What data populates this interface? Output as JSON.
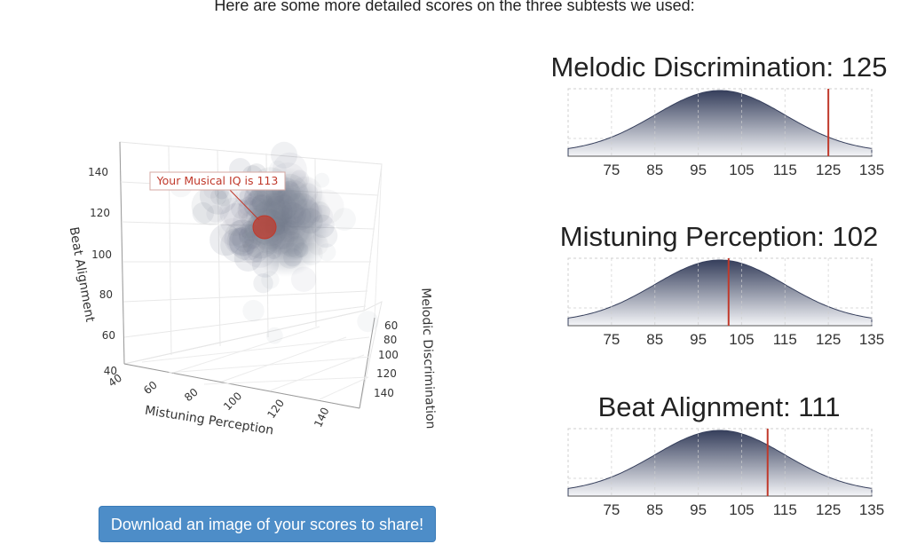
{
  "intro_text": "Here are some more detailed scores on the three subtests we used:",
  "download_button": "Download an image of your scores to share!",
  "colors": {
    "marker": "#c0392b",
    "cloud": "#6f7788",
    "button": "#4d8dc8",
    "curve_top": "#363f5c"
  },
  "chart_data": [
    {
      "type": "scatter",
      "dimensions": "3d",
      "xlabel": "Mistuning Perception",
      "ylabel": "Beat Alignment",
      "zlabel": "Melodic Discrimination",
      "x_ticks": [
        "40",
        "60",
        "80",
        "100",
        "120",
        "140"
      ],
      "y_ticks": [
        "40",
        "60",
        "80",
        "100",
        "120",
        "140"
      ],
      "z_ticks": [
        "60",
        "80",
        "100",
        "120",
        "140"
      ],
      "annotation": "Your Musical IQ is 113",
      "highlight": {
        "x": 102,
        "y": 111,
        "z": 125
      },
      "grid": true
    },
    {
      "type": "area",
      "title": "Melodic Discrimination: 125",
      "x_ticks": [
        "75",
        "85",
        "95",
        "105",
        "115",
        "125",
        "135"
      ],
      "xlim": [
        65,
        135
      ],
      "mean": 100,
      "sd": 15,
      "score": 125
    },
    {
      "type": "area",
      "title": "Mistuning Perception: 102",
      "x_ticks": [
        "75",
        "85",
        "95",
        "105",
        "115",
        "125",
        "135"
      ],
      "xlim": [
        65,
        135
      ],
      "mean": 100,
      "sd": 15,
      "score": 102
    },
    {
      "type": "area",
      "title": "Beat Alignment: 111",
      "x_ticks": [
        "75",
        "85",
        "95",
        "105",
        "115",
        "125",
        "135"
      ],
      "xlim": [
        65,
        135
      ],
      "mean": 100,
      "sd": 15,
      "score": 111
    }
  ]
}
